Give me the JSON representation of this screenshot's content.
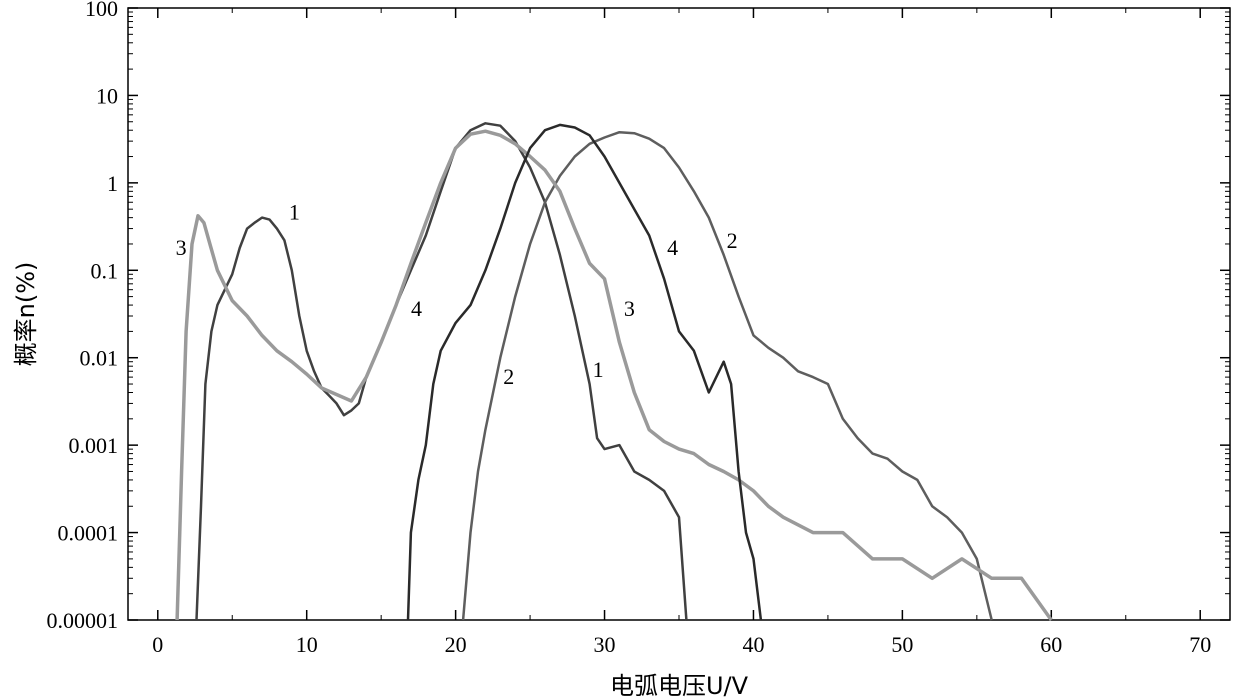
{
  "chart_data": {
    "type": "line",
    "title": "",
    "xlabel": "电弧电压U/V",
    "ylabel": "概率n(%)",
    "xlim": [
      -2,
      72
    ],
    "ylim": [
      1e-05,
      100
    ],
    "yscale": "log",
    "x_ticks": [
      0,
      10,
      20,
      30,
      40,
      50,
      60,
      70
    ],
    "x_tick_labels": [
      "0",
      "10",
      "20",
      "30",
      "40",
      "50",
      "60",
      "70"
    ],
    "y_ticks": [
      1e-05,
      0.0001,
      0.001,
      0.01,
      0.1,
      1,
      10,
      100
    ],
    "y_tick_labels": [
      "0.00001",
      "0.0001",
      "0.001",
      "0.01",
      "0.1",
      "1",
      "10",
      "100"
    ],
    "grid": false,
    "legend": "none",
    "series": [
      {
        "name": "1",
        "color": "#404040",
        "points": [
          [
            2.6,
            1e-05
          ],
          [
            2.9,
            0.0002
          ],
          [
            3.2,
            0.005
          ],
          [
            3.6,
            0.02
          ],
          [
            4.0,
            0.04
          ],
          [
            4.5,
            0.06
          ],
          [
            5.0,
            0.09
          ],
          [
            5.5,
            0.18
          ],
          [
            6.0,
            0.3
          ],
          [
            6.5,
            0.35
          ],
          [
            7.0,
            0.4
          ],
          [
            7.5,
            0.38
          ],
          [
            8.0,
            0.3
          ],
          [
            8.5,
            0.22
          ],
          [
            9.0,
            0.1
          ],
          [
            9.5,
            0.03
          ],
          [
            10.0,
            0.012
          ],
          [
            10.5,
            0.007
          ],
          [
            11.0,
            0.0045
          ],
          [
            11.5,
            0.0037
          ],
          [
            12.0,
            0.003
          ],
          [
            12.5,
            0.0022
          ],
          [
            13.0,
            0.0025
          ],
          [
            13.5,
            0.003
          ],
          [
            14.0,
            0.006
          ],
          [
            15.0,
            0.015
          ],
          [
            16.0,
            0.04
          ],
          [
            17.0,
            0.1
          ],
          [
            18.0,
            0.25
          ],
          [
            19.0,
            0.8
          ],
          [
            20.0,
            2.5
          ],
          [
            21.0,
            4.0
          ],
          [
            22.0,
            4.8
          ],
          [
            23.0,
            4.5
          ],
          [
            24.0,
            3.0
          ],
          [
            25.0,
            1.5
          ],
          [
            26.0,
            0.6
          ],
          [
            27.0,
            0.15
          ],
          [
            28.0,
            0.03
          ],
          [
            29.0,
            0.005
          ],
          [
            29.5,
            0.0012
          ],
          [
            30.0,
            0.0009
          ],
          [
            31.0,
            0.001
          ],
          [
            32.0,
            0.0005
          ],
          [
            33.0,
            0.0004
          ],
          [
            34.0,
            0.0003
          ],
          [
            35.0,
            0.00015
          ],
          [
            35.5,
            1e-05
          ]
        ],
        "label_at": [
          8.8,
          0.38
        ]
      },
      {
        "name": "2",
        "color": "#5e5e5e",
        "points": [
          [
            20.5,
            1e-05
          ],
          [
            21.0,
            0.0001
          ],
          [
            21.5,
            0.0005
          ],
          [
            22.0,
            0.0015
          ],
          [
            23.0,
            0.01
          ],
          [
            24.0,
            0.05
          ],
          [
            25.0,
            0.2
          ],
          [
            26.0,
            0.6
          ],
          [
            27.0,
            1.2
          ],
          [
            28.0,
            2.0
          ],
          [
            29.0,
            2.8
          ],
          [
            30.0,
            3.3
          ],
          [
            31.0,
            3.8
          ],
          [
            32.0,
            3.7
          ],
          [
            33.0,
            3.2
          ],
          [
            34.0,
            2.5
          ],
          [
            35.0,
            1.5
          ],
          [
            36.0,
            0.8
          ],
          [
            37.0,
            0.4
          ],
          [
            38.0,
            0.15
          ],
          [
            39.0,
            0.05
          ],
          [
            40.0,
            0.018
          ],
          [
            41.0,
            0.013
          ],
          [
            42.0,
            0.01
          ],
          [
            43.0,
            0.007
          ],
          [
            44.0,
            0.006
          ],
          [
            45.0,
            0.005
          ],
          [
            46.0,
            0.002
          ],
          [
            47.0,
            0.0012
          ],
          [
            48.0,
            0.0008
          ],
          [
            49.0,
            0.0007
          ],
          [
            50.0,
            0.0005
          ],
          [
            51.0,
            0.0004
          ],
          [
            52.0,
            0.0002
          ],
          [
            53.0,
            0.00015
          ],
          [
            54.0,
            0.0001
          ],
          [
            55.0,
            5e-05
          ],
          [
            56.0,
            1e-05
          ]
        ],
        "label_at": [
          38.2,
          0.18
        ]
      },
      {
        "name": "3",
        "color": "#9a9a9a",
        "points": [
          [
            1.3,
            1e-05
          ],
          [
            1.6,
            0.0005
          ],
          [
            1.9,
            0.02
          ],
          [
            2.3,
            0.2
          ],
          [
            2.7,
            0.42
          ],
          [
            3.1,
            0.35
          ],
          [
            3.5,
            0.2
          ],
          [
            4.0,
            0.1
          ],
          [
            5.0,
            0.045
          ],
          [
            6.0,
            0.03
          ],
          [
            7.0,
            0.018
          ],
          [
            8.0,
            0.012
          ],
          [
            9.0,
            0.009
          ],
          [
            10.0,
            0.0065
          ],
          [
            11.0,
            0.0045
          ],
          [
            12.0,
            0.0038
          ],
          [
            13.0,
            0.0032
          ],
          [
            14.0,
            0.006
          ],
          [
            15.0,
            0.015
          ],
          [
            16.0,
            0.04
          ],
          [
            17.0,
            0.12
          ],
          [
            18.0,
            0.35
          ],
          [
            19.0,
            1.0
          ],
          [
            20.0,
            2.5
          ],
          [
            21.0,
            3.6
          ],
          [
            22.0,
            3.9
          ],
          [
            23.0,
            3.5
          ],
          [
            24.0,
            2.8
          ],
          [
            25.0,
            2.0
          ],
          [
            26.0,
            1.4
          ],
          [
            27.0,
            0.8
          ],
          [
            28.0,
            0.3
          ],
          [
            29.0,
            0.12
          ],
          [
            30.0,
            0.08
          ],
          [
            31.0,
            0.015
          ],
          [
            32.0,
            0.004
          ],
          [
            33.0,
            0.0015
          ],
          [
            34.0,
            0.0011
          ],
          [
            35.0,
            0.0009
          ],
          [
            36.0,
            0.0008
          ],
          [
            37.0,
            0.0006
          ],
          [
            38.0,
            0.0005
          ],
          [
            39.0,
            0.0004
          ],
          [
            40.0,
            0.0003
          ],
          [
            41.0,
            0.0002
          ],
          [
            42.0,
            0.00015
          ],
          [
            44.0,
            0.0001
          ],
          [
            46.0,
            0.0001
          ],
          [
            48.0,
            5e-05
          ],
          [
            50.0,
            5e-05
          ],
          [
            52.0,
            3e-05
          ],
          [
            54.0,
            5e-05
          ],
          [
            56.0,
            3e-05
          ],
          [
            58.0,
            3e-05
          ],
          [
            60.0,
            1e-05
          ]
        ],
        "label_at": [
          1.2,
          0.15
        ]
      },
      {
        "name": "4",
        "color": "#2a2a2a",
        "points": [
          [
            16.8,
            1e-05
          ],
          [
            17.0,
            0.0001
          ],
          [
            17.5,
            0.0004
          ],
          [
            18.0,
            0.001
          ],
          [
            18.5,
            0.005
          ],
          [
            19.0,
            0.012
          ],
          [
            20.0,
            0.025
          ],
          [
            21.0,
            0.04
          ],
          [
            22.0,
            0.1
          ],
          [
            23.0,
            0.3
          ],
          [
            24.0,
            1.0
          ],
          [
            25.0,
            2.5
          ],
          [
            26.0,
            4.0
          ],
          [
            27.0,
            4.6
          ],
          [
            28.0,
            4.3
          ],
          [
            29.0,
            3.5
          ],
          [
            30.0,
            2.0
          ],
          [
            31.0,
            1.0
          ],
          [
            32.0,
            0.5
          ],
          [
            33.0,
            0.25
          ],
          [
            34.0,
            0.08
          ],
          [
            35.0,
            0.02
          ],
          [
            36.0,
            0.012
          ],
          [
            37.0,
            0.004
          ],
          [
            38.0,
            0.009
          ],
          [
            38.5,
            0.005
          ],
          [
            39.0,
            0.0005
          ],
          [
            39.5,
            0.0001
          ],
          [
            40.0,
            5e-05
          ],
          [
            40.5,
            1e-05
          ]
        ],
        "label_at": [
          17.0,
          0.03
        ]
      }
    ],
    "extra_labels": [
      {
        "text": "4",
        "at": [
          34.2,
          0.15
        ]
      },
      {
        "text": "3",
        "at": [
          31.3,
          0.03
        ]
      },
      {
        "text": "2",
        "at": [
          23.2,
          0.005
        ]
      },
      {
        "text": "1",
        "at": [
          29.2,
          0.006
        ]
      }
    ]
  }
}
